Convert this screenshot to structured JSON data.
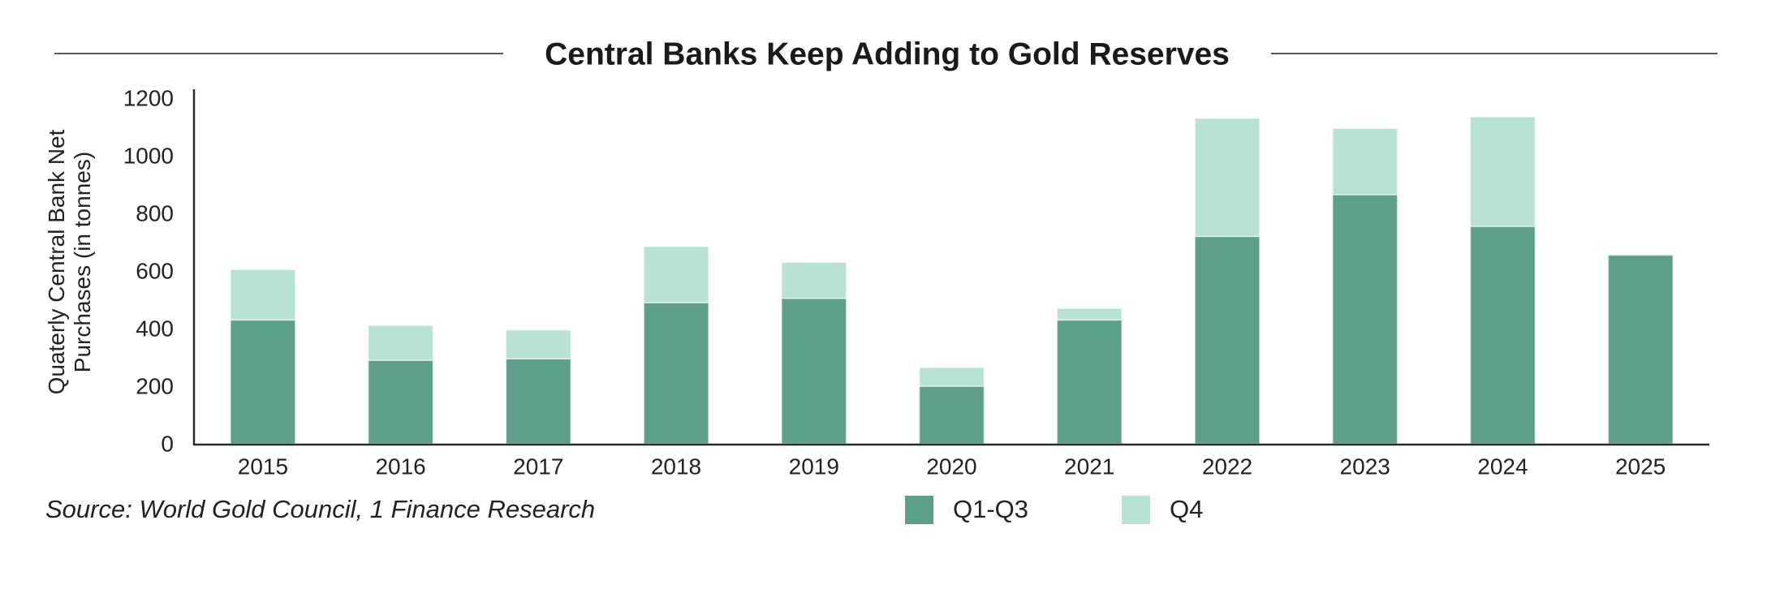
{
  "chart_data": {
    "type": "bar",
    "stacked": true,
    "title": "Central Banks Keep Adding to Gold Reserves",
    "ylabel": "Quaterly Central Bank Net Purchases (in tonnes)",
    "categories": [
      "2015",
      "2016",
      "2017",
      "2018",
      "2019",
      "2020",
      "2021",
      "2022",
      "2023",
      "2024",
      "2025"
    ],
    "series": [
      {
        "name": "Q1-Q3",
        "color": "#5e9f8c",
        "values": [
          430,
          290,
          295,
          490,
          505,
          200,
          430,
          720,
          865,
          755,
          655
        ]
      },
      {
        "name": "Q4",
        "color": "#b7e2d5",
        "values": [
          175,
          120,
          100,
          195,
          125,
          65,
          40,
          410,
          230,
          380,
          null
        ]
      }
    ],
    "ylim": [
      0,
      1200
    ],
    "yticks": [
      0,
      200,
      400,
      600,
      800,
      1000,
      1200
    ],
    "grid": false,
    "legend": "bottom-center",
    "source": "Source: World Gold Council, 1 Finance Research"
  }
}
